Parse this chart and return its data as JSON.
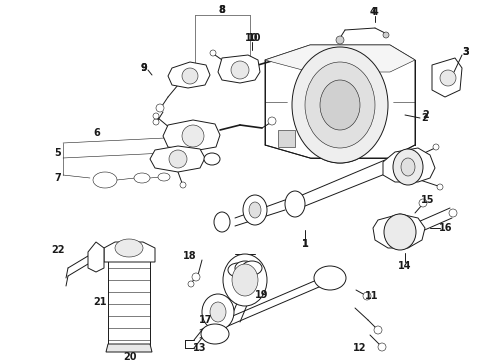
{
  "bg_color": "#ffffff",
  "line_color": "#1a1a1a",
  "label_color": "#000000",
  "figsize": [
    4.9,
    3.6
  ],
  "dpi": 100,
  "lw": 0.7,
  "lw_thin": 0.4,
  "lw_thick": 1.2
}
